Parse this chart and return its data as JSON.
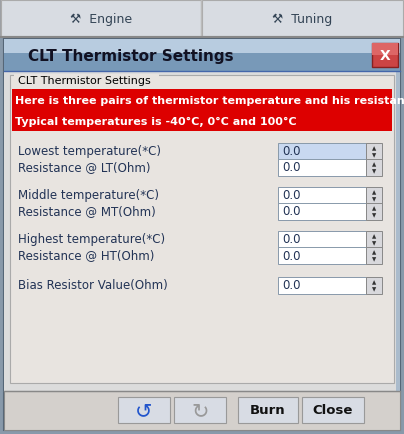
{
  "title_bar_text": "CLT Thermistor Settings",
  "tab1_text": "Engine",
  "tab2_text": "Tuning",
  "group_label": "CLT Thermistor Settings",
  "alert_line1": "Here is three pairs of thermistor temperature and his resistance.",
  "alert_line2": "Typical temperatures is -40°C, 0°C and 100°C",
  "fields": [
    "Lowest temperature(*C)",
    "Resistance @ LT(Ohm)",
    "Middle temperature(*C)",
    "Resistance @ MT(Ohm)",
    "Highest temperature(*C)",
    "Resistance @ HT(Ohm)",
    "Bias Resistor Value(Ohm)"
  ],
  "field_values": [
    "0.0",
    "0.0",
    "0.0",
    "0.0",
    "0.0",
    "0.0",
    "0.0"
  ],
  "btn_burn": "Burn",
  "btn_close": "Close",
  "outer_bg": "#8899aa",
  "tab_bg": "#d8dce2",
  "tab_sep_color": "#aaaaaa",
  "tabbar_bg": "#c8ccd4",
  "tabbar_border": "#999999",
  "titlebar_bg_top": "#b8cce0",
  "titlebar_bg_bot": "#8899b0",
  "dialog_body_bg": "#e0e0e0",
  "group_bg": "#e8e4e0",
  "group_border_color": "#aaaaaa",
  "red_bg": "#dd0000",
  "alert_text_color": "#ffffff",
  "field_label_color": "#222244",
  "field_box_bg": "#ffffff",
  "field_box_sel_bg": "#c8d8f0",
  "field_box_border": "#8899aa",
  "spinner_bg": "#d8d8dc",
  "spinner_border": "#888888",
  "close_btn_bg_top": "#d06060",
  "close_btn_bg_bot": "#aa2020",
  "close_btn_border": "#882020",
  "btn_bg": "#d8dce4",
  "btn_border": "#999999",
  "btn_text_color": "#111111",
  "bottom_bar_bg": "#d4d0cc",
  "bottom_bar_border": "#888888"
}
